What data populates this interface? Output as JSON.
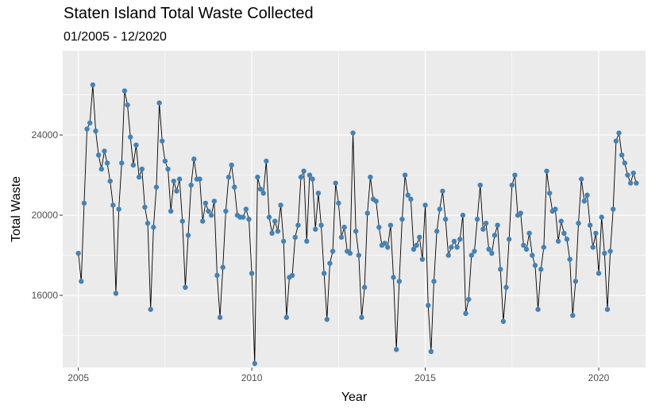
{
  "chart_data": {
    "type": "line",
    "title": "Staten Island Total Waste Collected",
    "subtitle": "01/2005 - 12/2020",
    "xlabel": "Year",
    "ylabel": "Total Waste",
    "xlim": [
      2004.55,
      2021.35
    ],
    "ylim": [
      12400,
      28200
    ],
    "x_ticks": [
      2005,
      2010,
      2015,
      2020
    ],
    "y_ticks": [
      16000,
      20000,
      24000
    ],
    "x_tick_labels": [
      "2005",
      "2010",
      "2015",
      "2020"
    ],
    "y_tick_labels": [
      "16000",
      "20000",
      "24000"
    ],
    "grid": true,
    "legend": "none",
    "series": [
      {
        "name": "Total Waste",
        "start_year": 2005,
        "start_month": 1,
        "point_color": "#4682b4",
        "line_color": "#000000",
        "values": [
          18100,
          16700,
          20600,
          24300,
          24600,
          26500,
          24200,
          23000,
          22300,
          23200,
          22600,
          21700,
          20500,
          16100,
          20300,
          22600,
          26200,
          25500,
          23900,
          22500,
          23500,
          21900,
          22300,
          20400,
          19600,
          15300,
          19400,
          21400,
          25600,
          23700,
          22700,
          22300,
          20200,
          21700,
          21200,
          21800,
          19700,
          16400,
          19000,
          21500,
          22800,
          21800,
          21800,
          19700,
          20600,
          20200,
          20000,
          20700,
          17000,
          14900,
          17400,
          20200,
          21900,
          22500,
          21400,
          20000,
          19900,
          19900,
          20300,
          19800,
          17100,
          12600,
          21900,
          21300,
          21100,
          22700,
          19900,
          19100,
          19700,
          19200,
          20500,
          18700,
          14900,
          16900,
          17000,
          18900,
          19500,
          21900,
          22200,
          18700,
          22000,
          21800,
          19300,
          21100,
          19500,
          17100,
          14800,
          17600,
          18200,
          21600,
          20600,
          18900,
          19400,
          18200,
          18100,
          24100,
          19200,
          18000,
          14900,
          16400,
          20100,
          21900,
          20800,
          20700,
          19400,
          18500,
          18600,
          18400,
          19500,
          16900,
          13300,
          16700,
          19800,
          22000,
          21000,
          20800,
          18300,
          18500,
          18900,
          17800,
          20500,
          15500,
          13200,
          16700,
          19200,
          20300,
          21200,
          19800,
          18000,
          18400,
          18700,
          18400,
          18800,
          20000,
          15100,
          15800,
          18000,
          18200,
          19800,
          21500,
          19300,
          19600,
          18300,
          18100,
          19000,
          19500,
          17300,
          14700,
          16400,
          18800,
          21500,
          22000,
          20000,
          20100,
          18500,
          18300,
          19100,
          18000,
          17500,
          15300,
          17300,
          18400,
          22200,
          21100,
          20200,
          20300,
          18700,
          19700,
          19100,
          18800,
          17800,
          15000,
          16700,
          19600,
          21800,
          20700,
          21000,
          19500,
          18400,
          19100,
          17100,
          19900,
          18100,
          15300,
          18200,
          20300,
          23700,
          24100,
          23000,
          22600,
          22000,
          21600,
          22100,
          21600
        ]
      }
    ]
  }
}
